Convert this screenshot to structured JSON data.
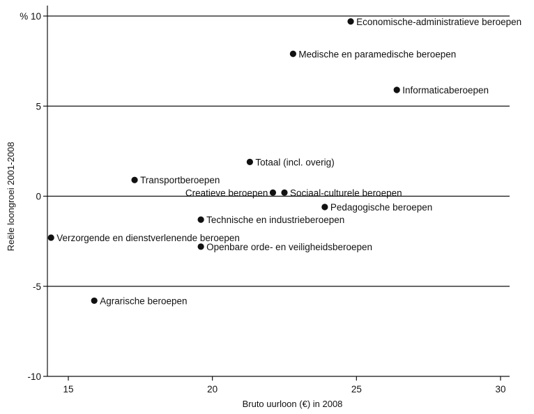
{
  "chart_data": {
    "type": "scatter",
    "title": "",
    "xlabel": "Bruto uurloon (€) in 2008",
    "ylabel": "Reële loongroei 2001-2008",
    "xlim": [
      14.1,
      30.3
    ],
    "ylim": [
      -10,
      10.5
    ],
    "xticks": [
      15,
      20,
      25,
      30
    ],
    "yticks": [
      -10,
      -5,
      0,
      5,
      10
    ],
    "ytick_labels": [
      "-10",
      "-5",
      "0",
      "5",
      "% 10"
    ],
    "grid": "horizontal",
    "points": [
      {
        "label": "Economische-administratieve beroepen",
        "x": 24.8,
        "y": 9.7
      },
      {
        "label": "Medische en paramedische beroepen",
        "x": 22.8,
        "y": 7.9
      },
      {
        "label": "Informaticaberoepen",
        "x": 26.4,
        "y": 5.9
      },
      {
        "label": "Totaal (incl. overig)",
        "x": 21.3,
        "y": 1.9
      },
      {
        "label": "Transportberoepen",
        "x": 17.3,
        "y": 0.9
      },
      {
        "label": "Creatieve beroepen",
        "x": 22.1,
        "y": 0.2
      },
      {
        "label": "Sociaal-culturele beroepen",
        "x": 22.5,
        "y": 0.2
      },
      {
        "label": "Pedagogische beroepen",
        "x": 23.9,
        "y": -0.6
      },
      {
        "label": "Technische en industrieberoepen",
        "x": 19.6,
        "y": -1.3
      },
      {
        "label": "Verzorgende en dienstverlenende beroepen",
        "x": 14.4,
        "y": -2.3
      },
      {
        "label": "Openbare orde- en veiligheidsberoepen",
        "x": 19.6,
        "y": -2.8
      },
      {
        "label": "Agrarische beroepen",
        "x": 15.9,
        "y": -5.8
      }
    ]
  }
}
